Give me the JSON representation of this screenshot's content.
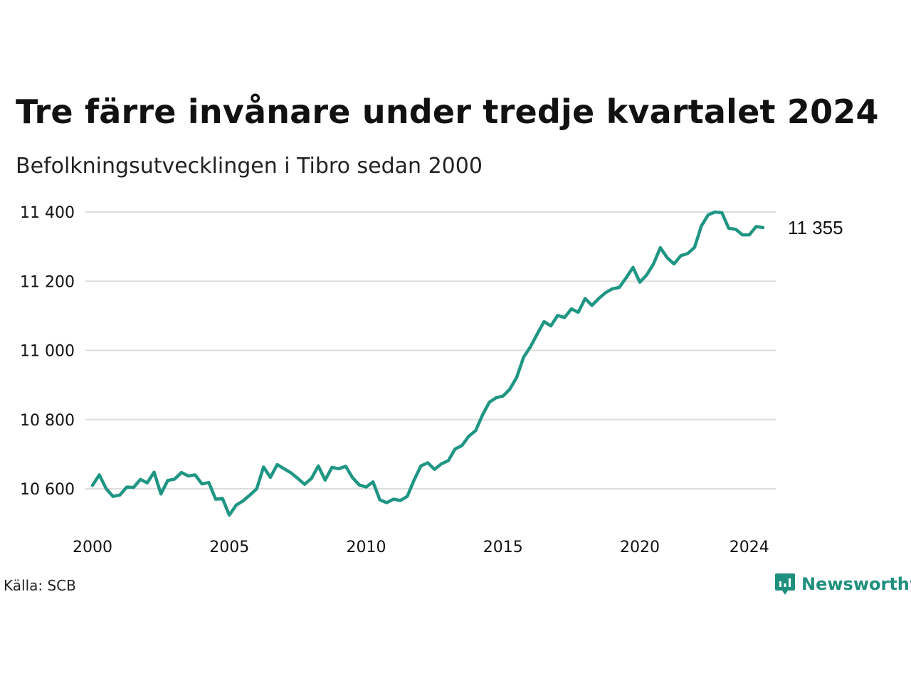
{
  "title": "Tre färre invånare under tredje kvartalet 2024",
  "subtitle": "Befolkningsutvecklingen i Tibro sedan 2000",
  "source": "Källa: SCB",
  "brand": {
    "name": "Newsworthy",
    "icon": "newsworthy-logo-icon",
    "color": "#1f8f7e"
  },
  "colors": {
    "line": "#1f9683",
    "grid": "#dddddd"
  },
  "chart_data": {
    "type": "line",
    "title": "Tre färre invånare under tredje kvartalet 2024",
    "subtitle": "Befolkningsutvecklingen i Tibro sedan 2000",
    "xlabel": "",
    "ylabel": "",
    "xlim": [
      2000,
      2024.75
    ],
    "ylim": [
      10500,
      11420
    ],
    "grid": true,
    "yticks": [
      10600,
      10800,
      11000,
      11200,
      11400
    ],
    "ytick_labels": [
      "10 600",
      "10 800",
      "11 000",
      "11 200",
      "11 400"
    ],
    "xticks": [
      2000,
      2005,
      2010,
      2015,
      2020,
      2024
    ],
    "xtick_labels": [
      "2000",
      "2005",
      "2010",
      "2015",
      "2020",
      "2024"
    ],
    "end_label": "11 355",
    "series": [
      {
        "x": [
          2000.0,
          2000.25,
          2000.5,
          2000.75,
          2001.0,
          2001.25,
          2001.5,
          2001.75,
          2002.0,
          2002.25,
          2002.5,
          2002.75,
          2003.0,
          2003.25,
          2003.5,
          2003.75,
          2004.0,
          2004.25,
          2004.5,
          2004.75,
          2005.0,
          2005.25,
          2005.5,
          2005.75,
          2006.0,
          2006.25,
          2006.5,
          2006.75,
          2007.0,
          2007.25,
          2007.5,
          2007.75,
          2008.0,
          2008.25,
          2008.5,
          2008.75,
          2009.0,
          2009.25,
          2009.5,
          2009.75,
          2010.0,
          2010.25,
          2010.5,
          2010.75,
          2011.0,
          2011.25,
          2011.5,
          2011.75,
          2012.0,
          2012.25,
          2012.5,
          2012.75,
          2013.0,
          2013.25,
          2013.5,
          2013.75,
          2014.0,
          2014.25,
          2014.5,
          2014.75,
          2015.0,
          2015.25,
          2015.5,
          2015.75,
          2016.0,
          2016.25,
          2016.5,
          2016.75,
          2017.0,
          2017.25,
          2017.5,
          2017.75,
          2018.0,
          2018.25,
          2018.5,
          2018.75,
          2019.0,
          2019.25,
          2019.5,
          2019.75,
          2020.0,
          2020.25,
          2020.5,
          2020.75,
          2021.0,
          2021.25,
          2021.5,
          2021.75,
          2022.0,
          2022.25,
          2022.5,
          2022.75,
          2023.0,
          2023.25,
          2023.5,
          2023.75,
          2024.0,
          2024.25,
          2024.5
        ],
        "values": [
          10610,
          10640,
          10600,
          10578,
          10582,
          10605,
          10604,
          10627,
          10617,
          10648,
          10585,
          10624,
          10628,
          10647,
          10637,
          10640,
          10614,
          10618,
          10570,
          10572,
          10524,
          10553,
          10565,
          10582,
          10600,
          10663,
          10633,
          10670,
          10658,
          10646,
          10630,
          10613,
          10630,
          10666,
          10625,
          10662,
          10658,
          10665,
          10632,
          10611,
          10605,
          10620,
          10568,
          10560,
          10570,
          10566,
          10578,
          10625,
          10666,
          10675,
          10656,
          10672,
          10681,
          10715,
          10725,
          10752,
          10768,
          10813,
          10850,
          10863,
          10868,
          10888,
          10922,
          10980,
          11010,
          11047,
          11083,
          11071,
          11101,
          11095,
          11120,
          11110,
          11150,
          11130,
          11150,
          11167,
          11178,
          11182,
          11210,
          11240,
          11197,
          11218,
          11250,
          11297,
          11268,
          11250,
          11274,
          11280,
          11298,
          11360,
          11392,
          11400,
          11398,
          11353,
          11350,
          11334,
          11334,
          11358,
          11355
        ]
      }
    ]
  }
}
